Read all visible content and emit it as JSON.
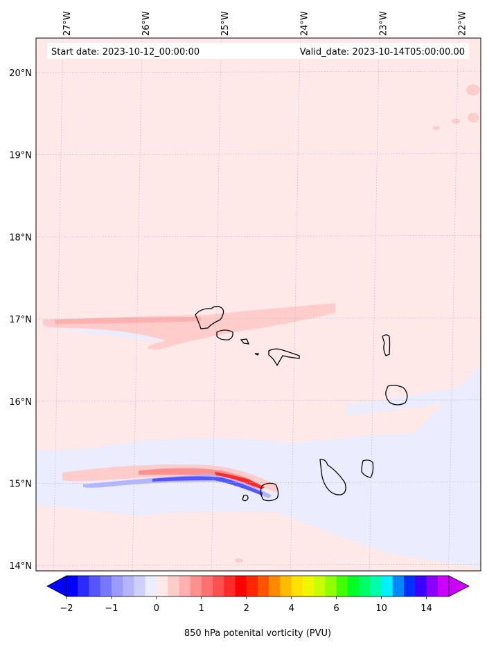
{
  "chart_data": {
    "type": "heatmap",
    "map_type": "filled contour map",
    "variable": "850 hPa potenital vorticity (PVU)",
    "start_date_text": "Start date: 2023-10-12_00:00:00",
    "valid_date_text": "Valid_date: 2023-10-14T05:00:00.00",
    "lon_ticks": [
      "27°W",
      "26°W",
      "25°W",
      "24°W",
      "23°W",
      "22°W"
    ],
    "lon_values": [
      -27,
      -26,
      -25,
      -24,
      -23,
      -22
    ],
    "lat_ticks": [
      "20°N",
      "19°N",
      "18°N",
      "17°N",
      "16°N",
      "15°N",
      "14°N"
    ],
    "lat_values": [
      20,
      19,
      18,
      17,
      16,
      15,
      14
    ],
    "lon_range": [
      -27.3,
      -21.8
    ],
    "lat_range": [
      13.95,
      20.4
    ],
    "grid": true,
    "colorbar": {
      "label": "850 hPa potenital vorticity (PVU)",
      "tick_labels": [
        "−2",
        "−1",
        "0",
        "1",
        "2",
        "4",
        "6",
        "10",
        "14"
      ],
      "extend": "both",
      "levels": [
        -2,
        -1.75,
        -1.5,
        -1.25,
        -1,
        -0.75,
        -0.5,
        -0.25,
        0,
        0.25,
        0.5,
        0.75,
        1,
        1.25,
        1.5,
        1.75,
        2,
        2.5,
        3,
        3.5,
        4,
        4.5,
        5,
        5.5,
        6,
        7,
        8,
        9,
        10,
        11,
        12,
        13,
        14,
        15
      ],
      "colors": [
        "#0000ff",
        "#2b2bff",
        "#5555ff",
        "#7878ff",
        "#9a9aff",
        "#b4b4ff",
        "#d0d0ff",
        "#ececff",
        "#ffe8e8",
        "#ffcccc",
        "#ffb0b0",
        "#ff9090",
        "#ff7070",
        "#ff5050",
        "#ff2a2a",
        "#ff0000",
        "#ff2600",
        "#ff5500",
        "#ff8a00",
        "#ffbb00",
        "#ffe100",
        "#f0f500",
        "#c8ff00",
        "#90ff00",
        "#44ff00",
        "#00ff22",
        "#00ff66",
        "#00ffaa",
        "#00f0ff",
        "#0088ff",
        "#0030ff",
        "#3a00ff",
        "#8800ff",
        "#cc00ff"
      ],
      "under_color": "#0000ff",
      "over_color": "#cc00ff"
    },
    "background_color": "#ffe8e8"
  }
}
